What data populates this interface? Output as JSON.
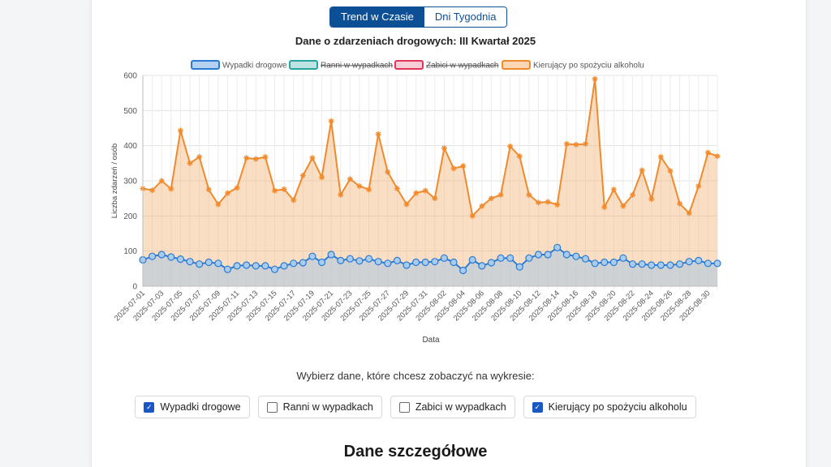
{
  "tabs": [
    {
      "label": "Trend w Czasie",
      "active": true
    },
    {
      "label": "Dni Tygodnia",
      "active": false
    }
  ],
  "controls": {
    "prompt": "Wybierz dane, które chcesz zobaczyć na wykresie:",
    "options": [
      {
        "label": "Wypadki drogowe",
        "checked": true
      },
      {
        "label": "Ranni w wypadkach",
        "checked": false
      },
      {
        "label": "Zabici w wypadkach",
        "checked": false
      },
      {
        "label": "Kierujący po spożyciu alkoholu",
        "checked": true
      }
    ]
  },
  "section": {
    "title": "Dane szczegółowe"
  },
  "chart_data": {
    "type": "line",
    "title": "Dane o zdarzeniach drogowych: III Kwartał 2025",
    "xlabel": "Data",
    "ylabel": "Liczba zdarzeń / osób",
    "ylim": [
      0,
      600
    ],
    "yticks": [
      0,
      100,
      200,
      300,
      400,
      500,
      600
    ],
    "grid": true,
    "legend_position": "top",
    "x": [
      "2025-07-01",
      "2025-07-02",
      "2025-07-03",
      "2025-07-04",
      "2025-07-05",
      "2025-07-06",
      "2025-07-07",
      "2025-07-08",
      "2025-07-09",
      "2025-07-10",
      "2025-07-11",
      "2025-07-12",
      "2025-07-13",
      "2025-07-14",
      "2025-07-15",
      "2025-07-16",
      "2025-07-17",
      "2025-07-18",
      "2025-07-19",
      "2025-07-20",
      "2025-07-21",
      "2025-07-22",
      "2025-07-23",
      "2025-07-24",
      "2025-07-25",
      "2025-07-26",
      "2025-07-27",
      "2025-07-28",
      "2025-07-29",
      "2025-07-30",
      "2025-07-31",
      "2025-08-01",
      "2025-08-02",
      "2025-08-03",
      "2025-08-04",
      "2025-08-05",
      "2025-08-06",
      "2025-08-07",
      "2025-08-08",
      "2025-08-09",
      "2025-08-10",
      "2025-08-11",
      "2025-08-12",
      "2025-08-13",
      "2025-08-14",
      "2025-08-15",
      "2025-08-16",
      "2025-08-17",
      "2025-08-18",
      "2025-08-19",
      "2025-08-20",
      "2025-08-21",
      "2025-08-22",
      "2025-08-23",
      "2025-08-24",
      "2025-08-25",
      "2025-08-26",
      "2025-08-27",
      "2025-08-28",
      "2025-08-29",
      "2025-08-30",
      "2025-08-31"
    ],
    "tick_labels": [
      "2025-07-01",
      "2025-07-03",
      "2025-07-05",
      "2025-07-07",
      "2025-07-09",
      "2025-07-11",
      "2025-07-13",
      "2025-07-15",
      "2025-07-17",
      "2025-07-19",
      "2025-07-21",
      "2025-07-23",
      "2025-07-25",
      "2025-07-27",
      "2025-07-29",
      "2025-07-31",
      "2025-08-02",
      "2025-08-04",
      "2025-08-06",
      "2025-08-08",
      "2025-08-10",
      "2025-08-12",
      "2025-08-14",
      "2025-08-16",
      "2025-08-18",
      "2025-08-20",
      "2025-08-22",
      "2025-08-24",
      "2025-08-26",
      "2025-08-28",
      "2025-08-30"
    ],
    "series": [
      {
        "name": "Wypadki drogowe",
        "visible": true,
        "color": "#2a7bd4",
        "fill": "rgba(170,200,228,0.55)",
        "marker": "circle",
        "values": [
          75,
          85,
          90,
          83,
          77,
          70,
          63,
          68,
          65,
          48,
          58,
          60,
          58,
          58,
          48,
          58,
          65,
          67,
          85,
          68,
          90,
          73,
          78,
          72,
          78,
          70,
          65,
          73,
          60,
          68,
          68,
          70,
          80,
          68,
          45,
          75,
          58,
          67,
          80,
          80,
          55,
          80,
          90,
          90,
          110,
          90,
          85,
          78,
          65,
          68,
          68,
          80,
          63,
          63,
          60,
          60,
          60,
          63,
          70,
          73,
          65,
          65
        ]
      },
      {
        "name": "Ranni w wypadkach",
        "visible": false,
        "color": "#2aa3a3"
      },
      {
        "name": "Zabici w wypadkach",
        "visible": false,
        "color": "#e0365c"
      },
      {
        "name": "Kierujący po spożyciu alkoholu",
        "visible": true,
        "color": "#f08a2c",
        "fill": "rgba(244,176,112,0.42)",
        "marker": "star",
        "values": [
          278,
          273,
          300,
          277,
          443,
          350,
          368,
          275,
          233,
          265,
          280,
          365,
          362,
          368,
          272,
          276,
          245,
          315,
          365,
          310,
          470,
          260,
          305,
          285,
          275,
          433,
          325,
          278,
          233,
          265,
          272,
          250,
          393,
          335,
          342,
          200,
          228,
          250,
          260,
          398,
          370,
          260,
          238,
          240,
          232,
          405,
          403,
          405,
          590,
          225,
          275,
          228,
          260,
          330,
          248,
          368,
          328,
          235,
          208,
          285,
          380,
          370
        ]
      }
    ]
  }
}
